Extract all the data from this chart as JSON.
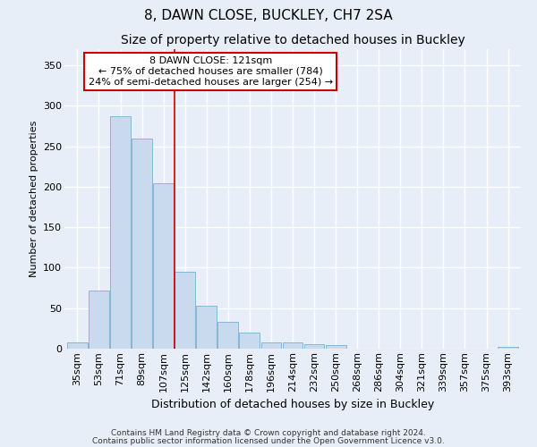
{
  "title1": "8, DAWN CLOSE, BUCKLEY, CH7 2SA",
  "title2": "Size of property relative to detached houses in Buckley",
  "xlabel": "Distribution of detached houses by size in Buckley",
  "ylabel": "Number of detached properties",
  "footer1": "Contains HM Land Registry data © Crown copyright and database right 2024.",
  "footer2": "Contains public sector information licensed under the Open Government Licence v3.0.",
  "categories": [
    "35sqm",
    "53sqm",
    "71sqm",
    "89sqm",
    "107sqm",
    "125sqm",
    "142sqm",
    "160sqm",
    "178sqm",
    "196sqm",
    "214sqm",
    "232sqm",
    "250sqm",
    "268sqm",
    "286sqm",
    "304sqm",
    "321sqm",
    "339sqm",
    "357sqm",
    "375sqm",
    "393sqm"
  ],
  "values": [
    8,
    72,
    287,
    259,
    204,
    95,
    53,
    33,
    20,
    8,
    8,
    5,
    4,
    0,
    0,
    0,
    0,
    0,
    0,
    0,
    2
  ],
  "bar_color": "#c9d9ee",
  "bar_edge_color": "#7aafd4",
  "vline_x": 5,
  "vline_color": "#cc0000",
  "annotation_text": "8 DAWN CLOSE: 121sqm\n← 75% of detached houses are smaller (784)\n24% of semi-detached houses are larger (254) →",
  "annotation_box_facecolor": "white",
  "annotation_box_edgecolor": "#cc0000",
  "ylim": [
    0,
    370
  ],
  "yticks": [
    0,
    50,
    100,
    150,
    200,
    250,
    300,
    350
  ],
  "bg_color": "#e8eef8",
  "plot_bg_color": "#e8eef8",
  "grid_color": "white",
  "title1_fontsize": 11,
  "title2_fontsize": 10,
  "xlabel_fontsize": 9,
  "ylabel_fontsize": 8,
  "tick_fontsize": 8,
  "annot_fontsize": 8,
  "footer_fontsize": 6.5
}
